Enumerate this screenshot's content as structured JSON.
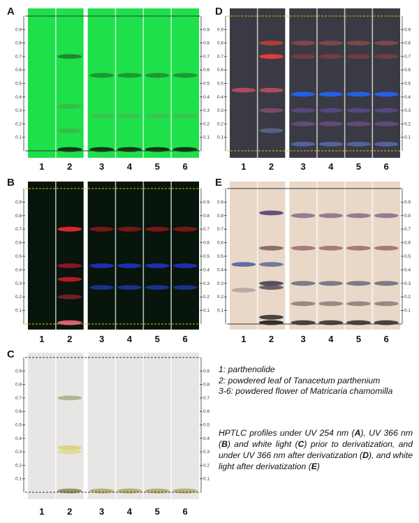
{
  "scale_ticks": [
    "0.1",
    "0.2",
    "0.3",
    "0.4",
    "0.5",
    "0.6",
    "0.7",
    "0.8",
    "0.9"
  ],
  "lanes": [
    "1",
    "2",
    "3",
    "4",
    "5",
    "6"
  ],
  "panels": {
    "A": {
      "letter": "A",
      "plate_bg": "#1ee04a",
      "tint": "#0c0c0c"
    },
    "B": {
      "letter": "B",
      "plate_bg": "#07150c",
      "tint": "#ffffff"
    },
    "C": {
      "letter": "C",
      "plate_bg": "#e7e6e4",
      "tint": "#000000"
    },
    "D": {
      "letter": "D",
      "plate_bg": "#3a3a44",
      "tint": "#ffffff"
    },
    "E": {
      "letter": "E",
      "plate_bg": "#e9d8c8",
      "tint": "#000000"
    }
  },
  "legend": {
    "line1": "1: parthenolide",
    "line2": "2: powdered leaf of Tanacetum parthenium",
    "line3": "3-6: powdered flower of Matricaria chamomilla"
  },
  "caption": {
    "p1": "HPTLC profiles under UV 254 nm (",
    "b1": "A",
    "p2": "), UV 366 nm (",
    "b2": "B",
    "p3": ") and white light (",
    "b3": "C",
    "p4": ") prior to derivatization, and under UV 366 nm after derivatization (",
    "b4": "D",
    "p5": "), and white light after derivatization (",
    "b5": "E",
    "p6": ")"
  },
  "band_colors": {
    "A": {
      "lane1": [],
      "lane2": [
        [
          0.01,
          "#0b1a0b"
        ],
        [
          0.7,
          "#1b7a2a"
        ],
        [
          0.33,
          "#3ab54a"
        ],
        [
          0.15,
          "#3ab54a"
        ]
      ],
      "lane3": [
        [
          0.01,
          "#0b1a0b"
        ],
        [
          0.56,
          "#1f8a30"
        ],
        [
          0.26,
          "#3fc050"
        ]
      ]
    },
    "B": {
      "lane2": [
        [
          0.01,
          "#ff6688"
        ],
        [
          0.7,
          "#ff2a2a"
        ],
        [
          0.33,
          "#d21a2a"
        ],
        [
          0.43,
          "#a01530"
        ],
        [
          0.2,
          "#802030"
        ]
      ],
      "lane3": [
        [
          0.7,
          "#8a1818"
        ],
        [
          0.43,
          "#2233cc"
        ],
        [
          0.27,
          "#1a3aa0"
        ]
      ]
    },
    "C": {
      "lane2": [
        [
          0.01,
          "#8a8450"
        ],
        [
          0.7,
          "#a7ab84"
        ],
        [
          0.33,
          "#d9cf7a"
        ],
        [
          0.3,
          "#e2d98a"
        ]
      ],
      "lane3": [
        [
          0.01,
          "#b3a560"
        ]
      ]
    },
    "D": {
      "lane1": [
        [
          0.45,
          "#c94a6a"
        ]
      ],
      "lane2": [
        [
          0.7,
          "#ff4030"
        ],
        [
          0.8,
          "#c04030"
        ],
        [
          0.45,
          "#c05060"
        ],
        [
          0.3,
          "#8a4a70"
        ],
        [
          0.15,
          "#5a6a8a"
        ]
      ],
      "lane3": [
        [
          0.8,
          "#8a4a4a"
        ],
        [
          0.7,
          "#7a4040"
        ],
        [
          0.42,
          "#2266ff"
        ],
        [
          0.3,
          "#5a4a8a"
        ],
        [
          0.2,
          "#6a5080"
        ],
        [
          0.05,
          "#5a6aaa"
        ]
      ]
    },
    "E": {
      "lane1": [
        [
          0.44,
          "#4a5a9a"
        ],
        [
          0.25,
          "#b0a0a0"
        ]
      ],
      "lane2": [
        [
          0.82,
          "#4a3a6a"
        ],
        [
          0.56,
          "#7a5a5a"
        ],
        [
          0.44,
          "#5a6a9a"
        ],
        [
          0.3,
          "#3a3a4a"
        ],
        [
          0.27,
          "#5a4a5a"
        ],
        [
          0.05,
          "#2a2a2a"
        ],
        [
          0.01,
          "#111111"
        ]
      ],
      "lane3": [
        [
          0.8,
          "#8a6a8a"
        ],
        [
          0.56,
          "#9a6a6a"
        ],
        [
          0.3,
          "#6a6a7a"
        ],
        [
          0.15,
          "#8a7a7a"
        ],
        [
          0.01,
          "#2a2a2a"
        ]
      ]
    }
  }
}
